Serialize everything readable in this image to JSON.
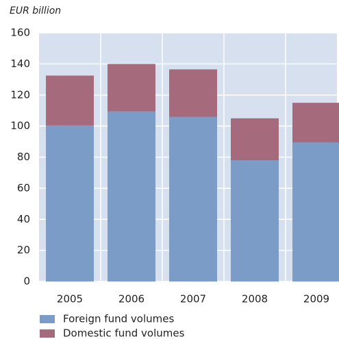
{
  "chart_data": {
    "type": "stacked_bar",
    "title": "EUR billion",
    "categories": [
      "2005",
      "2006",
      "2007",
      "2008",
      "2009"
    ],
    "series": [
      {
        "name": "Foreign fund volumes",
        "color": "#7a9cc6",
        "values": [
          100.5,
          109.5,
          106,
          78,
          89.5
        ]
      },
      {
        "name": "Domestic fund volumes",
        "color": "#a56a7c",
        "values": [
          32,
          30.5,
          30.5,
          27,
          25.5
        ]
      }
    ],
    "ylim": [
      0,
      160
    ],
    "yticks": [
      0,
      20,
      40,
      60,
      80,
      100,
      120,
      140,
      160
    ],
    "grid": true
  }
}
